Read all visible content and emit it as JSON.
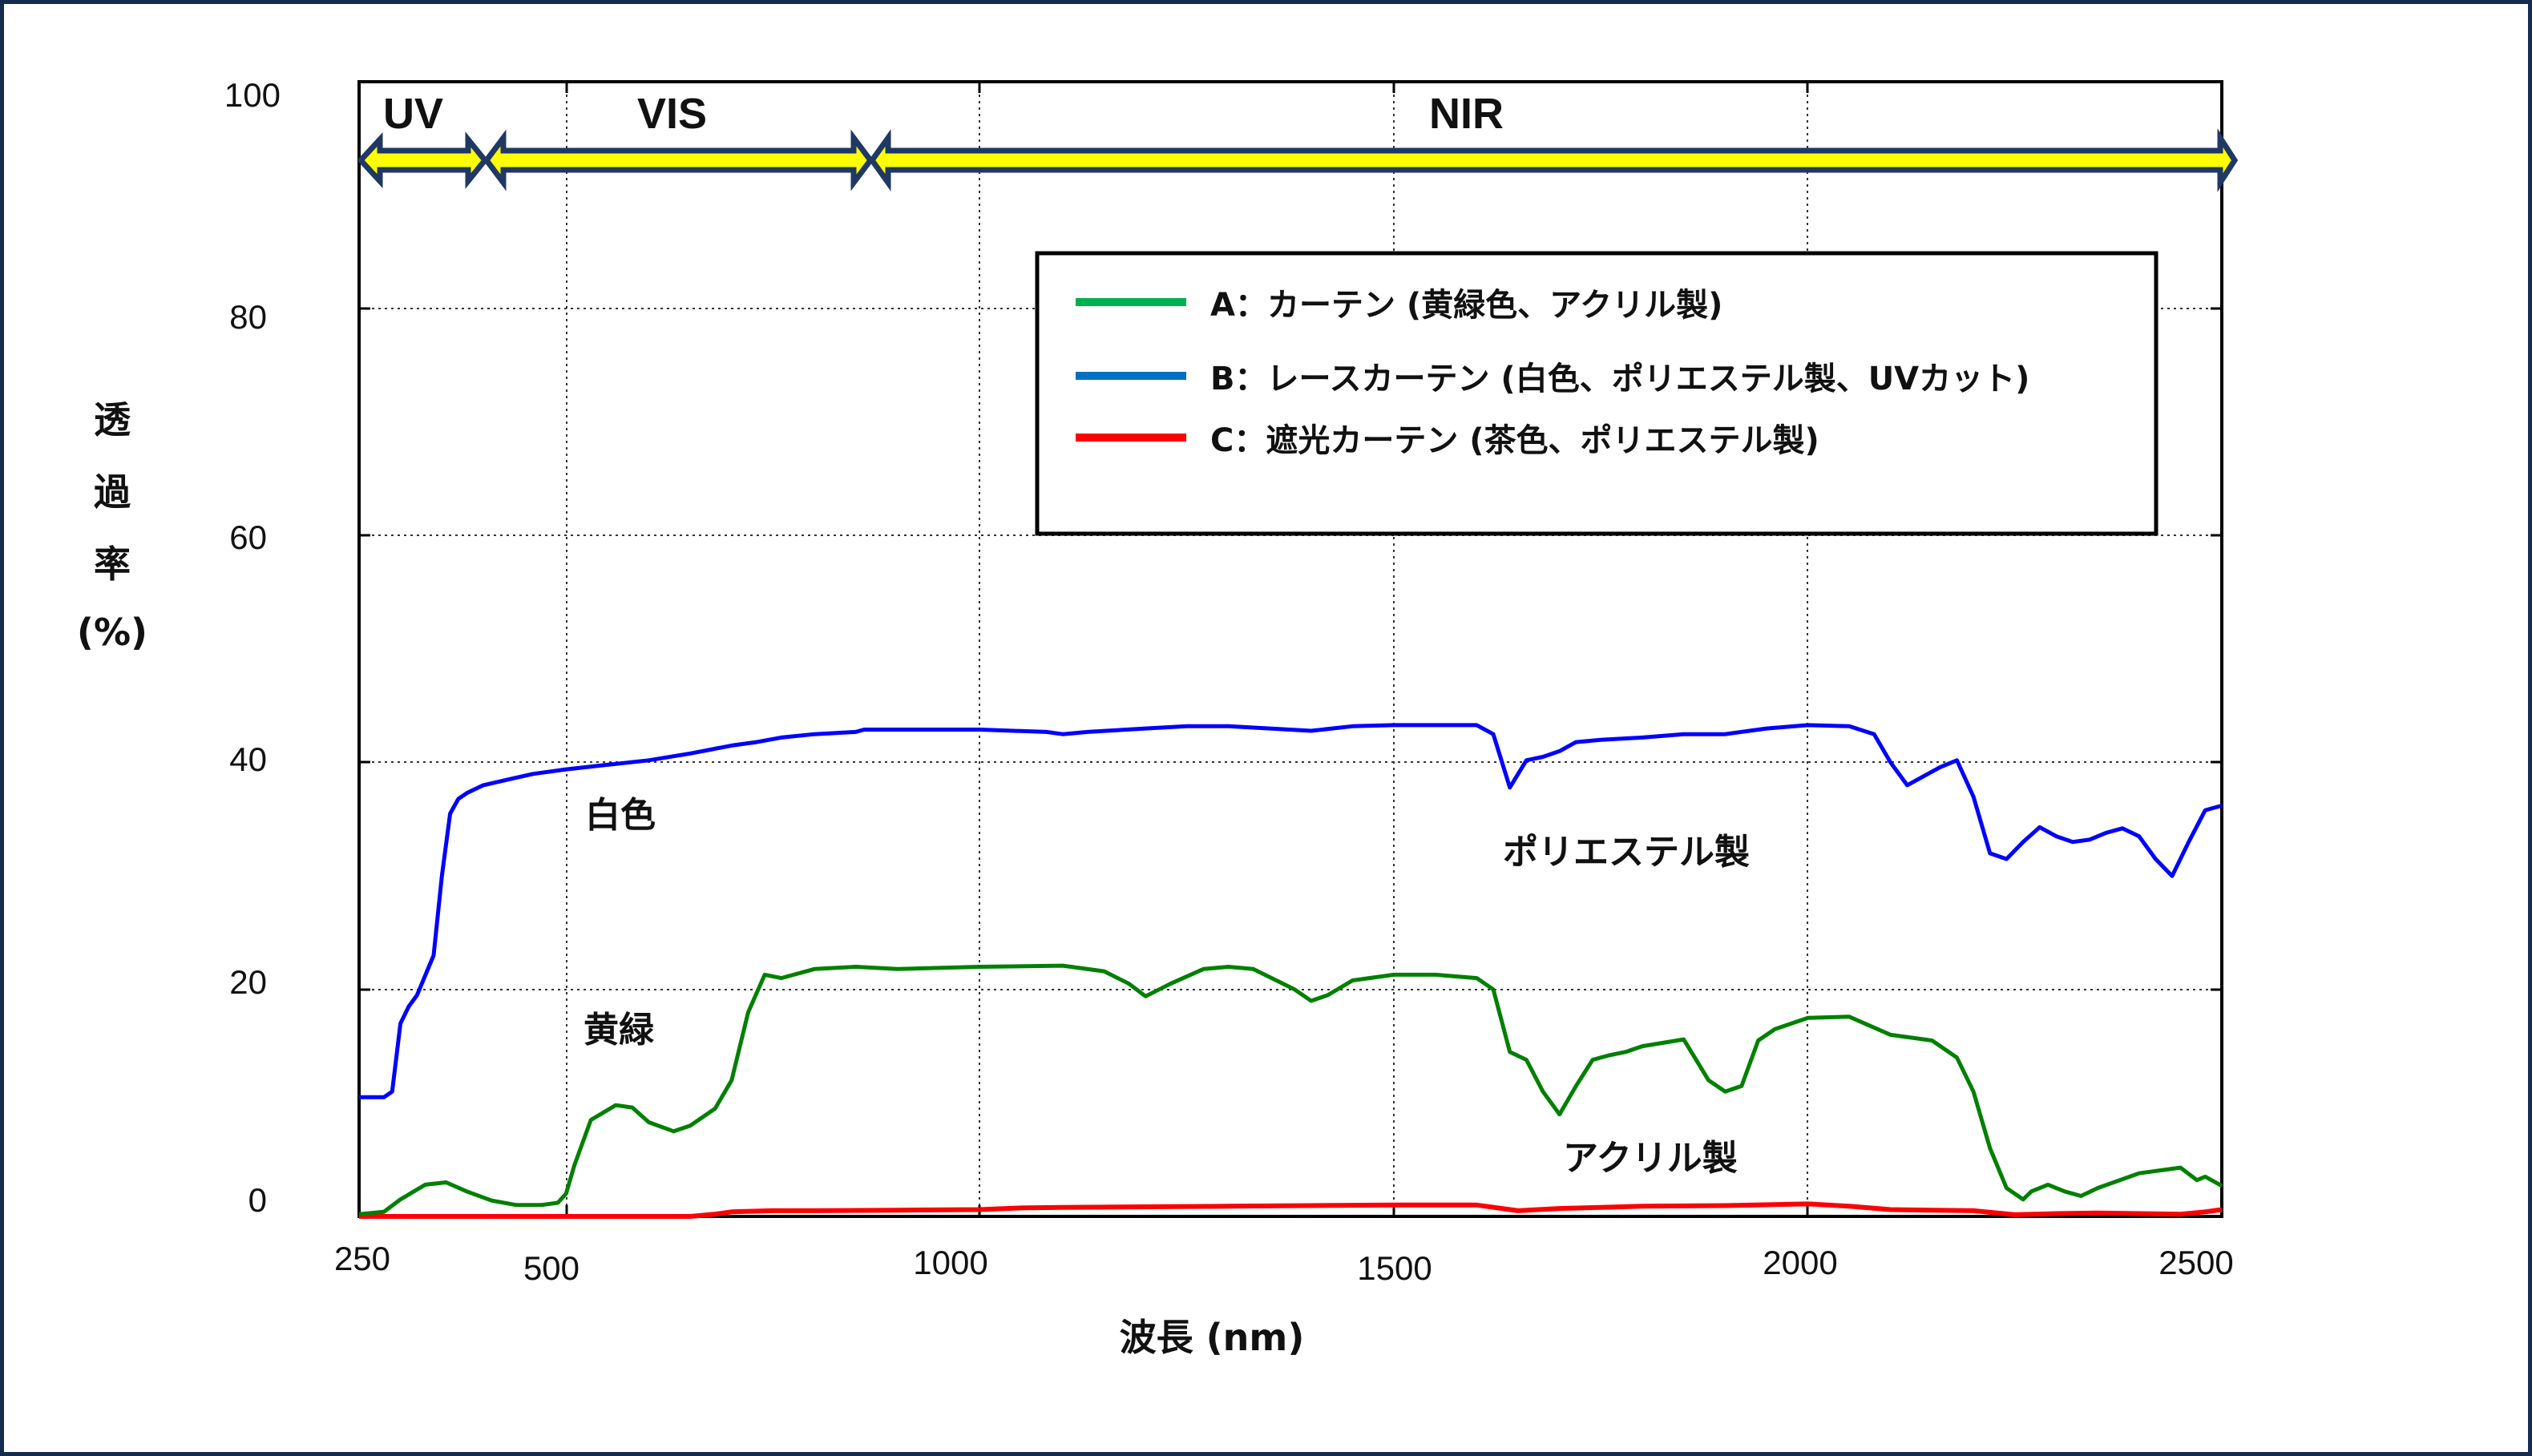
{
  "chart_data": {
    "type": "line",
    "title": "",
    "xlabel": "波長 (nm)",
    "ylabel": "透過率 (%)",
    "ylabel_lines": [
      "透",
      "過",
      "率",
      "(%)"
    ],
    "xlim": [
      250,
      2500
    ],
    "ylim": [
      0,
      100
    ],
    "grid": true,
    "x_ticks": [
      250,
      500,
      1000,
      1500,
      2000,
      2500
    ],
    "y_ticks": [
      0,
      20,
      40,
      60,
      80,
      100
    ],
    "regions": [
      {
        "label": "UV",
        "from": 250,
        "to": 400
      },
      {
        "label": "VIS",
        "from": 400,
        "to": 880
      },
      {
        "label": "NIR",
        "from": 880,
        "to": 2500
      }
    ],
    "legend_position": "upper-right-inside",
    "series": [
      {
        "name": "A：カーテン (黄緑色、アクリル製)",
        "legend_color": "#00B050",
        "line_color": "#008000",
        "x": [
          250,
          280,
          300,
          330,
          355,
          380,
          410,
          440,
          470,
          490,
          500,
          510,
          530,
          560,
          580,
          600,
          630,
          650,
          680,
          700,
          720,
          740,
          760,
          800,
          850,
          900,
          1000,
          1100,
          1150,
          1180,
          1200,
          1230,
          1270,
          1300,
          1330,
          1380,
          1400,
          1420,
          1450,
          1500,
          1550,
          1600,
          1620,
          1640,
          1660,
          1680,
          1700,
          1720,
          1740,
          1760,
          1780,
          1800,
          1850,
          1880,
          1900,
          1920,
          1940,
          1960,
          2000,
          2050,
          2100,
          2150,
          2180,
          2200,
          2220,
          2240,
          2260,
          2270,
          2290,
          2310,
          2330,
          2350,
          2400,
          2450,
          2470,
          2480,
          2500
        ],
        "y": [
          0.2,
          0.4,
          1.5,
          2.8,
          3.0,
          2.2,
          1.4,
          1.0,
          1.0,
          1.2,
          2.0,
          4.5,
          8.5,
          9.8,
          9.6,
          8.3,
          7.5,
          8.0,
          9.5,
          12,
          18,
          21.3,
          21.0,
          21.8,
          22.0,
          21.8,
          22.0,
          22.1,
          21.6,
          20.5,
          19.4,
          20.5,
          21.8,
          22.0,
          21.8,
          20.0,
          19.0,
          19.5,
          20.8,
          21.3,
          21.3,
          21.0,
          20.0,
          14.5,
          13.8,
          11.0,
          9.0,
          11.5,
          13.8,
          14.2,
          14.5,
          15.0,
          15.6,
          12.0,
          11.0,
          11.5,
          15.5,
          16.5,
          17.5,
          17.6,
          16.0,
          15.5,
          14.0,
          11.0,
          6.0,
          2.5,
          1.5,
          2.2,
          2.8,
          2.2,
          1.8,
          2.5,
          3.8,
          4.3,
          3.2,
          3.5,
          2.7
        ]
      },
      {
        "name": "B：レースカーテン (白色、ポリエステル製、UVカット)",
        "legend_color": "#0070C0",
        "line_color": "#0000FF",
        "x": [
          250,
          280,
          290,
          300,
          310,
          320,
          340,
          350,
          360,
          370,
          380,
          400,
          430,
          460,
          500,
          550,
          600,
          650,
          700,
          720,
          730,
          760,
          800,
          850,
          860,
          900,
          1000,
          1080,
          1100,
          1130,
          1200,
          1250,
          1300,
          1350,
          1400,
          1450,
          1500,
          1550,
          1600,
          1620,
          1640,
          1660,
          1680,
          1700,
          1720,
          1750,
          1800,
          1850,
          1900,
          1950,
          2000,
          2050,
          2080,
          2100,
          2120,
          2140,
          2160,
          2180,
          2200,
          2220,
          2240,
          2260,
          2280,
          2300,
          2320,
          2340,
          2360,
          2380,
          2400,
          2420,
          2440,
          2460,
          2480,
          2500
        ],
        "y": [
          10.5,
          10.5,
          11.0,
          17.0,
          18.5,
          19.5,
          23.0,
          30.0,
          35.5,
          36.8,
          37.3,
          38.0,
          38.5,
          39.0,
          39.4,
          39.8,
          40.2,
          40.8,
          41.5,
          41.7,
          41.8,
          42.2,
          42.5,
          42.7,
          42.9,
          42.9,
          42.9,
          42.7,
          42.5,
          42.7,
          43.0,
          43.2,
          43.2,
          43.0,
          42.8,
          43.2,
          43.3,
          43.3,
          43.3,
          42.5,
          37.8,
          40.2,
          40.5,
          41.0,
          41.8,
          42.0,
          42.2,
          42.5,
          42.5,
          43.0,
          43.3,
          43.2,
          42.5,
          40.0,
          38.0,
          38.8,
          39.6,
          40.2,
          37.0,
          32.0,
          31.5,
          33.0,
          34.3,
          33.5,
          33.0,
          33.2,
          33.8,
          34.2,
          33.5,
          31.5,
          30.0,
          33.0,
          35.8,
          36.2
        ]
      },
      {
        "name": "C：遮光カーテン (茶色、ポリエステル製)",
        "legend_color": "#FF0000",
        "line_color": "#FF0000",
        "x": [
          250,
          500,
          650,
          680,
          700,
          750,
          800,
          900,
          1000,
          1050,
          1100,
          1200,
          1300,
          1400,
          1500,
          1550,
          1600,
          1650,
          1700,
          1750,
          1800,
          1900,
          2000,
          2050,
          2100,
          2150,
          2200,
          2250,
          2300,
          2350,
          2400,
          2450,
          2480,
          2500
        ],
        "y": [
          0,
          0,
          0,
          0.2,
          0.4,
          0.5,
          0.5,
          0.55,
          0.6,
          0.75,
          0.8,
          0.85,
          0.9,
          0.95,
          1.0,
          1.0,
          1.0,
          0.5,
          0.7,
          0.8,
          0.9,
          0.95,
          1.1,
          0.9,
          0.6,
          0.55,
          0.5,
          0.15,
          0.25,
          0.3,
          0.25,
          0.2,
          0.4,
          0.6
        ]
      }
    ],
    "annotations": [
      {
        "text": "白色",
        "x_nm": 520,
        "y_pct": 34
      },
      {
        "text": "黄緑",
        "x_nm": 520,
        "y_pct": 15
      },
      {
        "text": "ポリエステル製",
        "x_nm": 1920,
        "y_pct": 31
      },
      {
        "text": "アクリル製",
        "x_nm": 1950,
        "y_pct": 3
      }
    ]
  },
  "labels": {
    "y_axis_title": [
      "透",
      "過",
      "率",
      "(%)"
    ],
    "x_axis_title": "波長 (nm)",
    "x_tick_labels": [
      "250",
      "500",
      "1000",
      "1500",
      "2000",
      "2500"
    ],
    "y_tick_labels": [
      "100",
      "80",
      "60",
      "40",
      "20",
      "0"
    ],
    "region_uv": "UV",
    "region_vis": "VIS",
    "region_nir": "NIR",
    "legend_a": "A：カーテン (黄緑色、アクリル製)",
    "legend_b": "B：レースカーテン (白色、ポリエステル製、UVカット)",
    "legend_c": "C：遮光カーテン (茶色、ポリエステル製)",
    "anno_white": "白色",
    "anno_yellowgreen": "黄緑",
    "anno_polyester": "ポリエステル製",
    "anno_acrylic": "アクリル製"
  },
  "colors": {
    "frame_border": "#172B4F",
    "arrow_fill": "#FFFF00",
    "arrow_outline": "#1F3864"
  }
}
